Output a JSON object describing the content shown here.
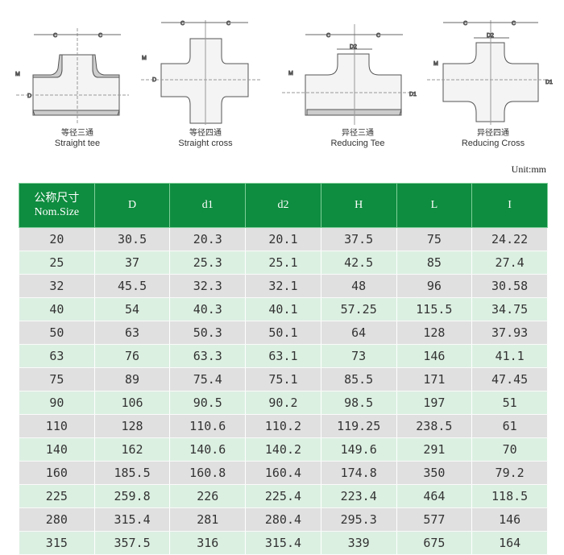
{
  "diagrams": [
    {
      "cn": "等径三通",
      "en": "Straight tee",
      "labels": {
        "c": "C",
        "m": "M",
        "d": "D"
      }
    },
    {
      "cn": "等径四通",
      "en": "Straight cross",
      "labels": {
        "c": "C",
        "m": "M",
        "d": "D"
      }
    },
    {
      "cn": "异径三通",
      "en": "Reducing Tee",
      "labels": {
        "c": "C",
        "m": "M",
        "d1": "D1",
        "d2": "D2"
      }
    },
    {
      "cn": "异径四通",
      "en": "Reducing Cross",
      "labels": {
        "c": "C",
        "m": "M",
        "d1": "D1",
        "d2": "D2"
      }
    }
  ],
  "unit": "Unit:mm",
  "colors": {
    "header": "#0e8c3f",
    "row_gray": "#e0e0e0",
    "row_green": "#dcf0e2"
  },
  "table": {
    "header_cn": "公称尺寸",
    "header_en": "Nom.Size",
    "columns": [
      "D",
      "d1",
      "d2",
      "H",
      "L",
      "I"
    ],
    "rows": [
      [
        "20",
        "30.5",
        "20.3",
        "20.1",
        "37.5",
        "75",
        "24.22"
      ],
      [
        "25",
        "37",
        "25.3",
        "25.1",
        "42.5",
        "85",
        "27.4"
      ],
      [
        "32",
        "45.5",
        "32.3",
        "32.1",
        "48",
        "96",
        "30.58"
      ],
      [
        "40",
        "54",
        "40.3",
        "40.1",
        "57.25",
        "115.5",
        "34.75"
      ],
      [
        "50",
        "63",
        "50.3",
        "50.1",
        "64",
        "128",
        "37.93"
      ],
      [
        "63",
        "76",
        "63.3",
        "63.1",
        "73",
        "146",
        "41.1"
      ],
      [
        "75",
        "89",
        "75.4",
        "75.1",
        "85.5",
        "171",
        "47.45"
      ],
      [
        "90",
        "106",
        "90.5",
        "90.2",
        "98.5",
        "197",
        "51"
      ],
      [
        "110",
        "128",
        "110.6",
        "110.2",
        "119.25",
        "238.5",
        "61"
      ],
      [
        "140",
        "162",
        "140.6",
        "140.2",
        "149.6",
        "291",
        "70"
      ],
      [
        "160",
        "185.5",
        "160.8",
        "160.4",
        "174.8",
        "350",
        "79.2"
      ],
      [
        "225",
        "259.8",
        "226",
        "225.4",
        "223.4",
        "464",
        "118.5"
      ],
      [
        "280",
        "315.4",
        "281",
        "280.4",
        "295.3",
        "577",
        "146"
      ],
      [
        "315",
        "357.5",
        "316",
        "315.4",
        "339",
        "675",
        "164"
      ]
    ]
  }
}
